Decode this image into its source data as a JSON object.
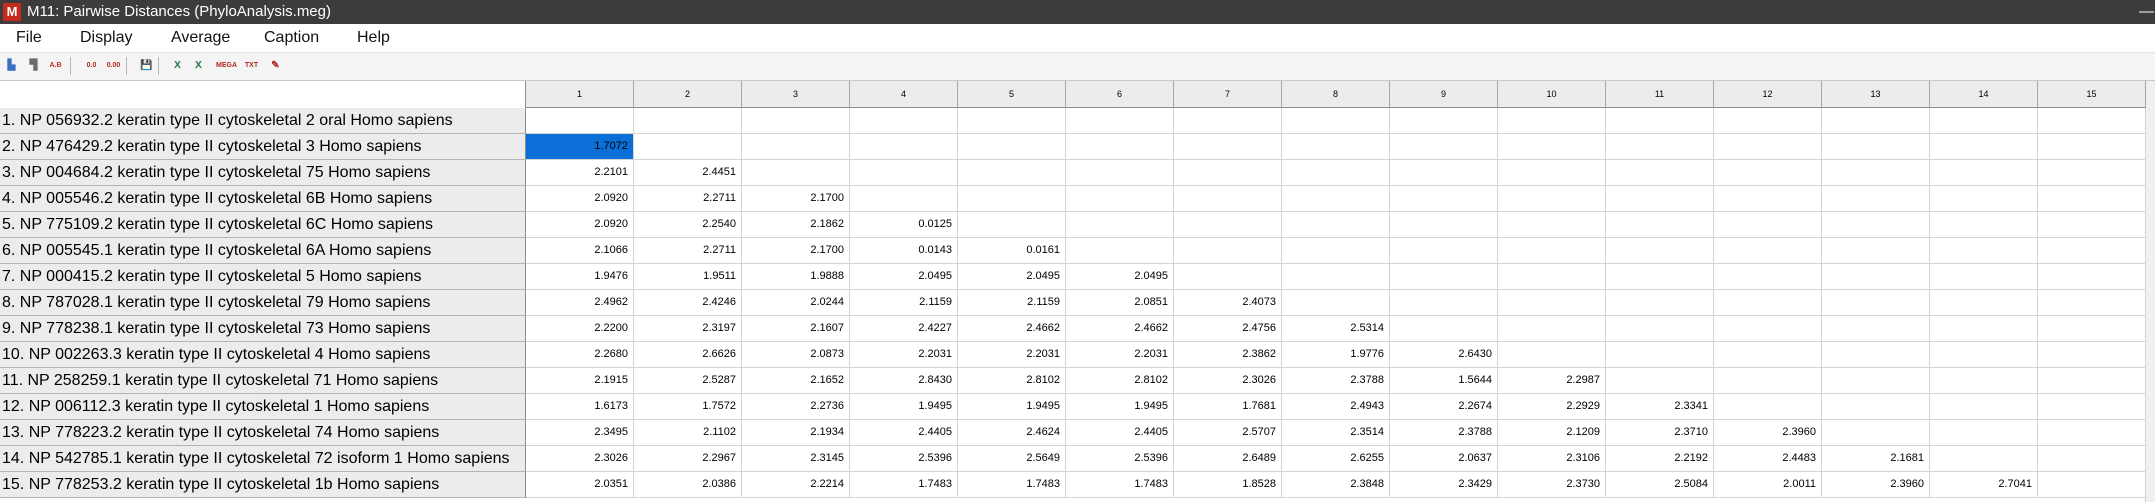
{
  "window": {
    "title": "M11: Pairwise Distances (PhyloAnalysis.meg)",
    "app_icon": "M",
    "minimize_glyph": "—"
  },
  "menu": [
    "File",
    "Display",
    "Average",
    "Caption",
    "Help"
  ],
  "toolbar": {
    "buttons": [
      {
        "name": "lower-left-matrix-icon",
        "glyph": "▙",
        "color": "#3b6fc4"
      },
      {
        "name": "upper-right-matrix-icon",
        "glyph": "▜",
        "color": "#6d6d6d"
      },
      {
        "name": "caption-icon",
        "glyph": "A.B",
        "color": "#c42b1c"
      },
      {
        "name": "decrease-decimals-icon",
        "glyph": "0.0",
        "color": "#b0281e"
      },
      {
        "name": "increase-decimals-icon",
        "glyph": "0.00",
        "color": "#b0281e"
      },
      {
        "name": "save-icon",
        "glyph": "💾",
        "color": "#3a3a3a"
      },
      {
        "name": "export-excel-icon",
        "glyph": "X",
        "color": "#1d7a3f"
      },
      {
        "name": "export-excel-alt-icon",
        "glyph": "X",
        "color": "#1d7a3f"
      },
      {
        "name": "export-mega-icon",
        "glyph": "MEGA",
        "color": "#b0281e"
      },
      {
        "name": "export-text-icon",
        "glyph": "TXT",
        "color": "#b0281e"
      },
      {
        "name": "edit-icon",
        "glyph": "✎",
        "color": "#b0281e"
      }
    ]
  },
  "colors": {
    "selected_cell": "#0a6fd6",
    "header_bg": "#ececec",
    "titlebar_bg": "#3c3c3c"
  },
  "table": {
    "column_headers": [
      "1",
      "2",
      "3",
      "4",
      "5",
      "6",
      "7",
      "8",
      "9",
      "10",
      "11",
      "12",
      "13",
      "14",
      "15"
    ],
    "row_labels": [
      "1. NP 056932.2 keratin type II cytoskeletal 2 oral Homo sapiens",
      "2. NP 476429.2 keratin type II cytoskeletal 3 Homo sapiens",
      "3. NP 004684.2 keratin type II cytoskeletal 75 Homo sapiens",
      "4. NP 005546.2 keratin type II cytoskeletal 6B Homo sapiens",
      "5. NP 775109.2 keratin type II cytoskeletal 6C Homo sapiens",
      "6. NP 005545.1 keratin type II cytoskeletal 6A Homo sapiens",
      "7. NP 000415.2 keratin type II cytoskeletal 5 Homo sapiens",
      "8. NP 787028.1 keratin type II cytoskeletal 79 Homo sapiens",
      "9. NP 778238.1 keratin type II cytoskeletal 73 Homo sapiens",
      "10. NP 002263.3 keratin type II cytoskeletal 4 Homo sapiens",
      "11. NP 258259.1 keratin type II cytoskeletal 71 Homo sapiens",
      "12. NP 006112.3 keratin type II cytoskeletal 1 Homo sapiens",
      "13. NP 778223.2 keratin type II cytoskeletal 74 Homo sapiens",
      "14. NP 542785.1 keratin type II cytoskeletal 72 isoform 1 Homo sapiens",
      "15. NP 778253.2 keratin type II cytoskeletal 1b Homo sapiens"
    ],
    "values": [
      [],
      [
        "1.7072"
      ],
      [
        "2.2101",
        "2.4451"
      ],
      [
        "2.0920",
        "2.2711",
        "2.1700"
      ],
      [
        "2.0920",
        "2.2540",
        "2.1862",
        "0.0125"
      ],
      [
        "2.1066",
        "2.2711",
        "2.1700",
        "0.0143",
        "0.0161"
      ],
      [
        "1.9476",
        "1.9511",
        "1.9888",
        "2.0495",
        "2.0495",
        "2.0495"
      ],
      [
        "2.4962",
        "2.4246",
        "2.0244",
        "2.1159",
        "2.1159",
        "2.0851",
        "2.4073"
      ],
      [
        "2.2200",
        "2.3197",
        "2.1607",
        "2.4227",
        "2.4662",
        "2.4662",
        "2.4756",
        "2.5314"
      ],
      [
        "2.2680",
        "2.6626",
        "2.0873",
        "2.2031",
        "2.2031",
        "2.2031",
        "2.3862",
        "1.9776",
        "2.6430"
      ],
      [
        "2.1915",
        "2.5287",
        "2.1652",
        "2.8430",
        "2.8102",
        "2.8102",
        "2.3026",
        "2.3788",
        "1.5644",
        "2.2987"
      ],
      [
        "1.6173",
        "1.7572",
        "2.2736",
        "1.9495",
        "1.9495",
        "1.9495",
        "1.7681",
        "2.4943",
        "2.2674",
        "2.2929",
        "2.3341"
      ],
      [
        "2.3495",
        "2.1102",
        "2.1934",
        "2.4405",
        "2.4624",
        "2.4405",
        "2.5707",
        "2.3514",
        "2.3788",
        "2.1209",
        "2.3710",
        "2.3960"
      ],
      [
        "2.3026",
        "2.2967",
        "2.3145",
        "2.5396",
        "2.5649",
        "2.5396",
        "2.6489",
        "2.6255",
        "2.0637",
        "2.3106",
        "2.2192",
        "2.4483",
        "2.1681"
      ],
      [
        "2.0351",
        "2.0386",
        "2.2214",
        "1.7483",
        "1.7483",
        "1.7483",
        "1.8528",
        "2.3848",
        "2.3429",
        "2.3730",
        "2.5084",
        "2.0011",
        "2.3960",
        "2.7041"
      ]
    ],
    "selected": {
      "row": 1,
      "col": 0
    }
  }
}
